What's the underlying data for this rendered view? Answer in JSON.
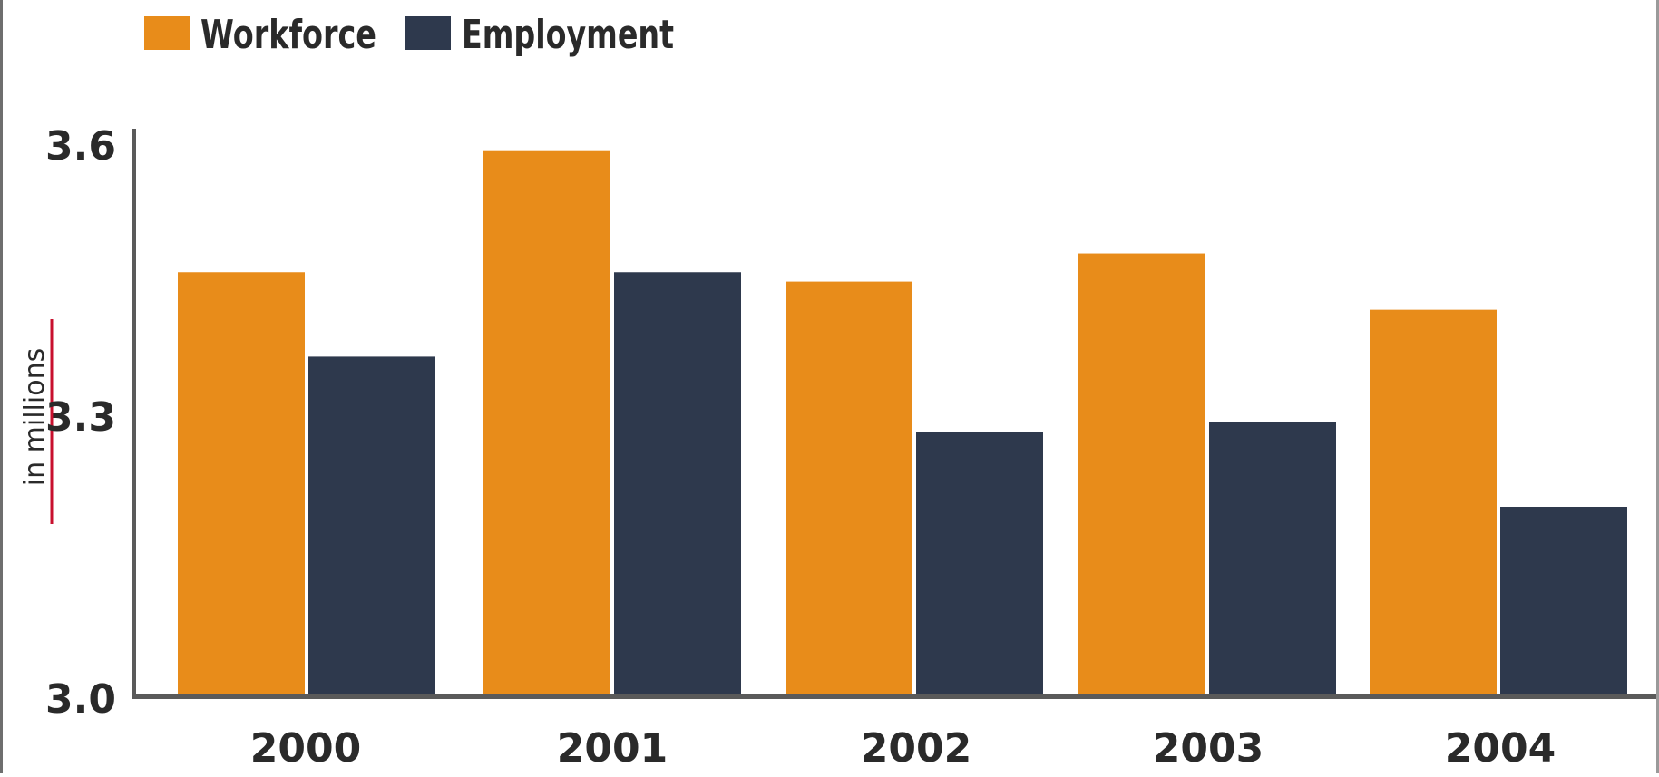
{
  "chart_data": {
    "type": "bar",
    "categories": [
      "2000",
      "2001",
      "2002",
      "2003",
      "2004"
    ],
    "series": [
      {
        "name": "Workforce",
        "color": "#e88c1a",
        "values": [
          3.45,
          3.58,
          3.44,
          3.47,
          3.41
        ]
      },
      {
        "name": "Employment",
        "color": "#2e394d",
        "values": [
          3.36,
          3.45,
          3.28,
          3.29,
          3.2
        ]
      }
    ],
    "title": "",
    "xlabel": "",
    "ylabel": "in millions",
    "ylim": [
      3.0,
      3.6
    ],
    "yticks": [
      "3.0",
      "3.3",
      "3.6"
    ],
    "ytick_values": [
      3.0,
      3.3,
      3.6
    ],
    "legend_position": "top-left",
    "grid": false,
    "ylabel_accent_color": "#c8102e",
    "axis_color": "#5a5a5a"
  }
}
